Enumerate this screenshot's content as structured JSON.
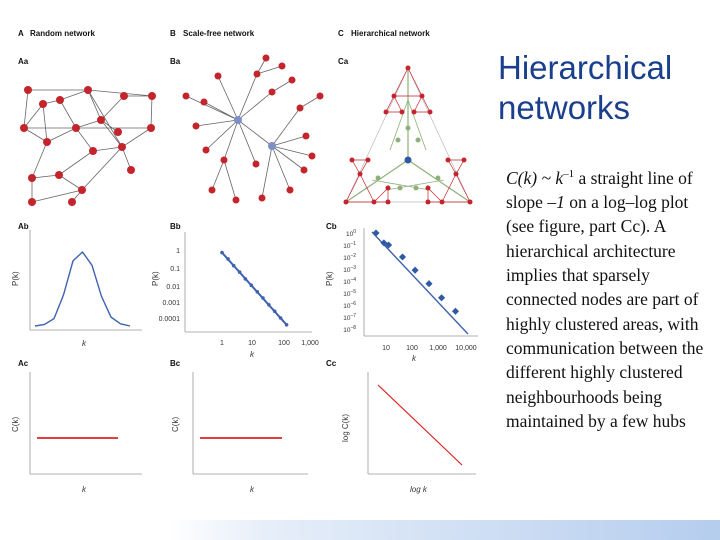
{
  "slide": {
    "title_line1": "Hierarchical",
    "title_line2": "networks",
    "body_formula": "C(k) ~ k",
    "body_exponent": "–1",
    "body_p1": " a straight line of slope ",
    "body_slope": "–1",
    "body_p2": " on a log–log plot (see figure, part Cc). A hierarchical architecture implies that sparsely connected nodes are part of highly clustered areas, with communication between the different highly clustered neighbourhoods being maintained by a few hubs"
  },
  "figure": {
    "headers": {
      "A": "A",
      "A_text": "Random network",
      "B": "B",
      "B_text": "Scale-free network",
      "C": "C",
      "C_text": "Hierarchical network"
    },
    "panel_labels": {
      "Aa": "Aa",
      "Ba": "Ba",
      "Ca": "Ca",
      "Ab": "Ab",
      "Bb": "Bb",
      "Cb": "Cb",
      "Ac": "Ac",
      "Bc": "Bc",
      "Cc": "Cc"
    },
    "axis": {
      "pk": "P(k)",
      "ck": "C(k)",
      "k": "k",
      "logck": "log C(k)",
      "logk": "log k"
    },
    "colors": {
      "node": "#c4242b",
      "hub": "#7d8fc4",
      "hier_hub": "#2d5aa0",
      "hier_green": "#8fb07a",
      "curve_blue": "#3f62b0",
      "line_red": "#dd2222"
    }
  },
  "chart_data": [
    {
      "panel": "Ab",
      "type": "line",
      "xlabel": "k",
      "ylabel": "P(k)",
      "description_free": true,
      "series": [
        {
          "x": [
            0,
            1,
            2,
            3,
            4,
            5,
            6,
            7,
            8,
            9,
            10
          ],
          "values": [
            0.0,
            0.02,
            0.1,
            0.42,
            0.88,
            1.0,
            0.82,
            0.4,
            0.12,
            0.03,
            0.0
          ]
        }
      ]
    },
    {
      "panel": "Bb",
      "type": "scatter",
      "xlabel": "k",
      "ylabel": "P(k)",
      "x_ticks": [
        "1",
        "10",
        "100",
        "1,000"
      ],
      "y_ticks": [
        "1",
        "0.1",
        "0.01",
        "0.001",
        "0.0001"
      ],
      "scale": "log-log",
      "series": [
        {
          "x": [
            1,
            1.6,
            2.5,
            4,
            6.3,
            10,
            16,
            25,
            40,
            63,
            100,
            160
          ],
          "values": [
            0.7,
            0.3,
            0.12,
            0.05,
            0.02,
            0.0085,
            0.0035,
            0.0015,
            0.0006,
            0.00025,
            0.0001,
            4e-05
          ]
        }
      ]
    },
    {
      "panel": "Cb",
      "type": "scatter",
      "xlabel": "k",
      "ylabel": "P(k)",
      "x_ticks": [
        "10",
        "100",
        "1,000",
        "10,000"
      ],
      "y_ticks": [
        "10",
        "10",
        "10",
        "10",
        "10",
        "10",
        "10",
        "10",
        "10"
      ],
      "y_tick_exponents": [
        "0",
        "–1",
        "–2",
        "–3",
        "–4",
        "–5",
        "–6",
        "–7",
        "–8"
      ],
      "scale": "log-log",
      "series": [
        {
          "x": [
            4,
            8,
            12,
            40,
            120,
            400,
            1200,
            4000
          ],
          "values": [
            1,
            0.15,
            0.1,
            0.01,
            0.0008,
            6e-05,
            4e-06,
            3e-07
          ]
        }
      ]
    },
    {
      "panel": "Ac",
      "type": "line",
      "xlabel": "k",
      "ylabel": "C(k)",
      "series": [
        {
          "x": [
            0,
            10
          ],
          "values": [
            0.5,
            0.5
          ]
        }
      ]
    },
    {
      "panel": "Bc",
      "type": "line",
      "xlabel": "k",
      "ylabel": "C(k)",
      "series": [
        {
          "x": [
            0,
            10
          ],
          "values": [
            0.5,
            0.5
          ]
        }
      ]
    },
    {
      "panel": "Cc",
      "type": "line",
      "xlabel": "log k",
      "ylabel": "log C(k)",
      "series": [
        {
          "x": [
            0,
            10
          ],
          "values": [
            10,
            0
          ]
        }
      ]
    }
  ]
}
